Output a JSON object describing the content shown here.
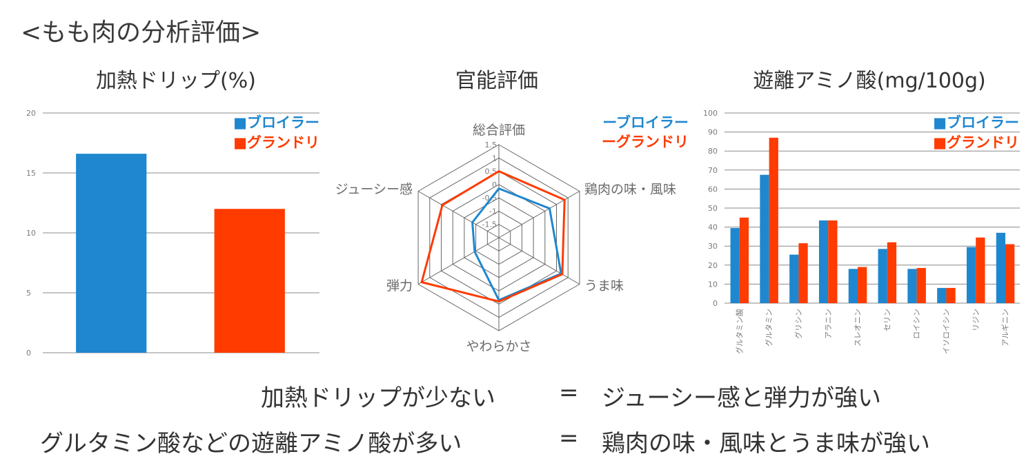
{
  "heading": "<もも肉の分析評価>",
  "colors": {
    "broiler": "#1f87cf",
    "grandori": "#ff3b00",
    "grid": "#888888"
  },
  "charts": {
    "drip": {
      "title": "加熱ドリップ(%)"
    },
    "sensory": {
      "title": "官能評価"
    },
    "amino": {
      "title": "遊離アミノ酸(mg/100g)"
    }
  },
  "conclusions": {
    "line1_left": "加熱ドリップが少ない",
    "line1_eq": "=",
    "line1_right": "ジューシー感と弾力が強い",
    "line2_left": "グルタミン酸などの遊離アミノ酸が多い",
    "line2_eq": "=",
    "line2_right": "鶏肉の味・風味とうま味が強い"
  },
  "chart_data": [
    {
      "type": "bar",
      "title": "加熱ドリップ(%)",
      "categories": [
        "ブロイラー",
        "グランドリ"
      ],
      "values": [
        16.6,
        12.0
      ],
      "ylim": [
        0,
        20
      ],
      "yticks": [
        0,
        5,
        10,
        15,
        20
      ],
      "legend": [
        {
          "label": "■ブロイラー",
          "color": "#1f87cf"
        },
        {
          "label": "■グランドリ",
          "color": "#ff3b00"
        }
      ],
      "legend_position": "top-right",
      "grid": true
    },
    {
      "type": "radar",
      "title": "官能評価",
      "axes": [
        "総合評価",
        "鶏肉の味・風味",
        "うま味",
        "やわらかさ",
        "弾力",
        "ジューシー感"
      ],
      "range": [
        -2,
        1.5
      ],
      "ticks": [
        "1.5",
        "1",
        "0.5",
        "0",
        "-0.5",
        "-1",
        "-1.5"
      ],
      "tick_values": [
        1.5,
        1,
        0.5,
        0,
        -0.5,
        -1,
        -1.5
      ],
      "series": [
        {
          "name": "ブロイラー",
          "values": [
            -0.15,
            0.2,
            0.7,
            0.35,
            -0.95,
            -0.85
          ]
        },
        {
          "name": "グランドリ",
          "values": [
            0.5,
            0.85,
            0.75,
            0.4,
            1.35,
            0.45
          ]
        }
      ],
      "legend": [
        {
          "label": "ーブロイラー",
          "color": "#1f87cf"
        },
        {
          "label": "ーグランドリ",
          "color": "#ff3b00"
        }
      ],
      "legend_position": "top-right"
    },
    {
      "type": "bar",
      "title": "遊離アミノ酸(mg/100g)",
      "categories": [
        "グルタミン酸",
        "グルタミン",
        "グリシン",
        "アラニン",
        "スレオニン",
        "セリン",
        "ロイシン",
        "イソロイシン",
        "リジン",
        "アルギニン"
      ],
      "series": [
        {
          "name": "ブロイラー",
          "values": [
            39.5,
            67.5,
            25.5,
            43.5,
            18,
            28.5,
            18,
            8,
            29.5,
            37
          ]
        },
        {
          "name": "グランドリ",
          "values": [
            45,
            87,
            31.5,
            43.5,
            19,
            32,
            18.5,
            8,
            34.5,
            31
          ]
        }
      ],
      "ylim": [
        0,
        100
      ],
      "yticks": [
        0,
        10,
        20,
        30,
        40,
        50,
        60,
        70,
        80,
        90,
        100
      ],
      "legend": [
        {
          "label": "■ブロイラー",
          "color": "#1f87cf"
        },
        {
          "label": "■グランドリ",
          "color": "#ff3b00"
        }
      ],
      "legend_position": "top-right",
      "grid": true
    }
  ]
}
